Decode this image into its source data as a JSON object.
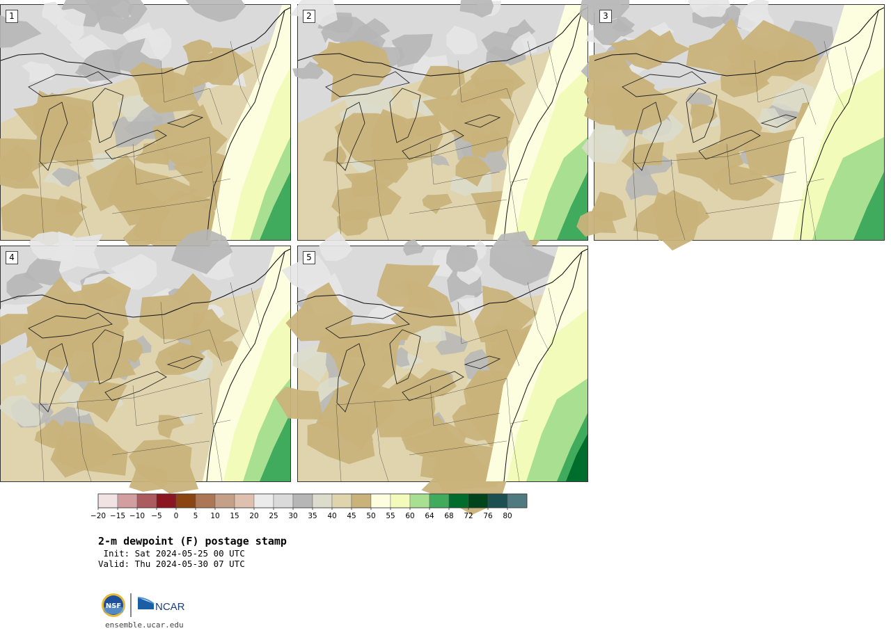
{
  "panels": [
    {
      "label": "1",
      "variant": 0
    },
    {
      "label": "2",
      "variant": 1
    },
    {
      "label": "3",
      "variant": 2
    },
    {
      "label": "4",
      "variant": 3
    },
    {
      "label": "5",
      "variant": 4
    }
  ],
  "colorbar": {
    "bins": [
      {
        "color": "#f1e3e3"
      },
      {
        "color": "#d39ea0"
      },
      {
        "color": "#ac5b5e"
      },
      {
        "color": "#8b1620"
      },
      {
        "color": "#8b4513"
      },
      {
        "color": "#ac7754"
      },
      {
        "color": "#c4a088"
      },
      {
        "color": "#dfc0ae"
      },
      {
        "color": "#ebebeb"
      },
      {
        "color": "#dadada"
      },
      {
        "color": "#b6b6b6"
      },
      {
        "color": "#dcdccc"
      },
      {
        "color": "#dfd4ad"
      },
      {
        "color": "#c9b37b"
      },
      {
        "color": "#fdfde0"
      },
      {
        "color": "#f3fbbb"
      },
      {
        "color": "#a9df91"
      },
      {
        "color": "#41ab5d"
      },
      {
        "color": "#006d2c"
      },
      {
        "color": "#00441b"
      },
      {
        "color": "#1c4f52"
      },
      {
        "color": "#4e7a80"
      }
    ],
    "tick_labels": [
      "−20",
      "−15",
      "−10",
      "−5",
      "0",
      "5",
      "10",
      "15",
      "20",
      "25",
      "30",
      "35",
      "40",
      "45",
      "50",
      "55",
      "60",
      "64",
      "68",
      "72",
      "76",
      "80"
    ]
  },
  "title": "2-m dewpoint (F) postage stamp",
  "init": " Init: Sat 2024-05-25 00 UTC",
  "valid": "Valid: Thu 2024-05-30 07 UTC",
  "logos": {
    "nsf": "NSF",
    "ncar": "NCAR"
  },
  "url": "ensemble.ucar.edu",
  "colors": {
    "tan": "#c9b37b",
    "light_tan": "#dfd4ad",
    "gray": "#b6b6b6",
    "light_gray": "#dadada",
    "pale_gray": "#dcdccc",
    "cream": "#fdfde0",
    "pale_yellow": "#f3fbbb",
    "light_green": "#a9df91",
    "green": "#41ab5d",
    "dark_green": "#006d2c"
  }
}
